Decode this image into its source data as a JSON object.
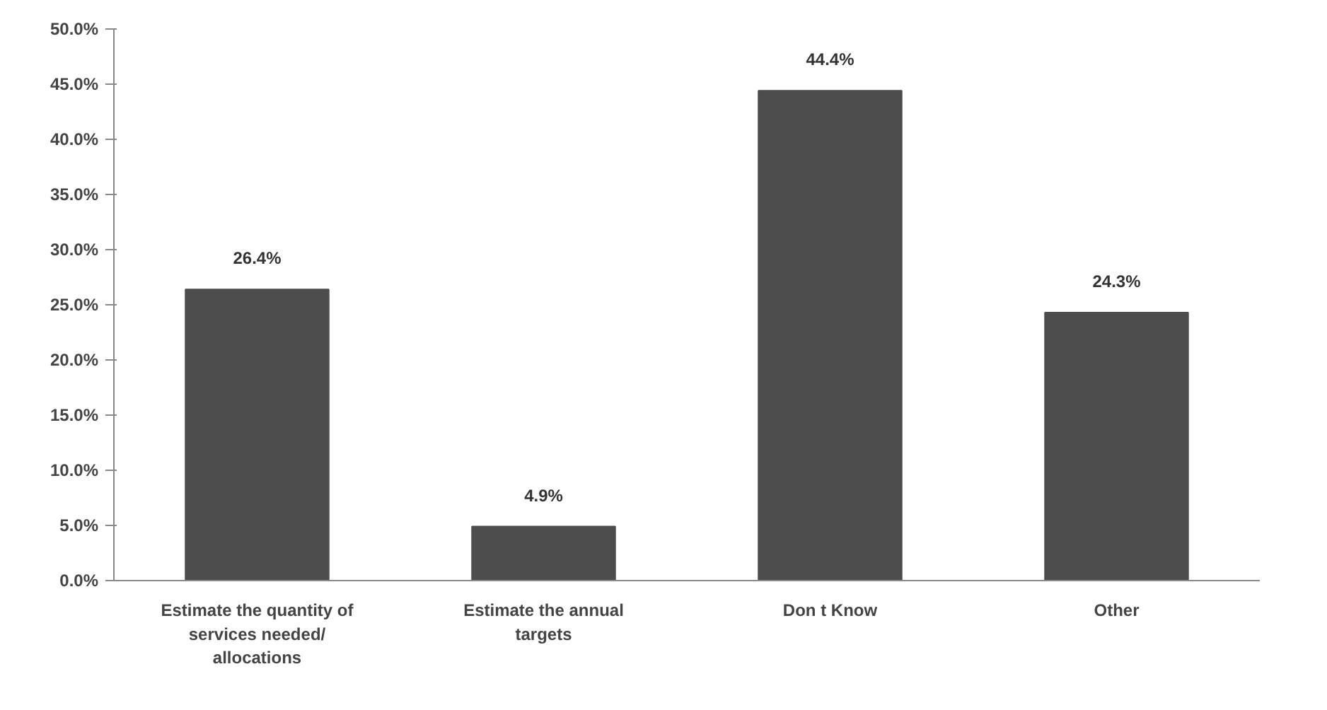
{
  "chart_data": {
    "type": "bar",
    "categories": [
      "Estimate the quantity of services needed/ allocations",
      "Estimate the annual targets",
      "Don t Know",
      "Other"
    ],
    "values": [
      26.4,
      4.9,
      44.4,
      24.3
    ],
    "color": "#4d4d4d",
    "value_labels": [
      "26.4%",
      "4.9%",
      "44.4%",
      "24.3%"
    ],
    "ylim": [
      0,
      50
    ],
    "yticks": [
      {
        "value": 0,
        "label": "0.0%"
      },
      {
        "value": 5,
        "label": "5.0%"
      },
      {
        "value": 10,
        "label": "10.0%"
      },
      {
        "value": 15,
        "label": "15.0%"
      },
      {
        "value": 20,
        "label": "20.0%"
      },
      {
        "value": 25,
        "label": "25.0%"
      },
      {
        "value": 30,
        "label": "30.0%"
      },
      {
        "value": 35,
        "label": "35.0%"
      },
      {
        "value": 40,
        "label": "40.0%"
      },
      {
        "value": 45,
        "label": "45.0%"
      },
      {
        "value": 50,
        "label": "50.0%"
      }
    ],
    "grid": false
  }
}
